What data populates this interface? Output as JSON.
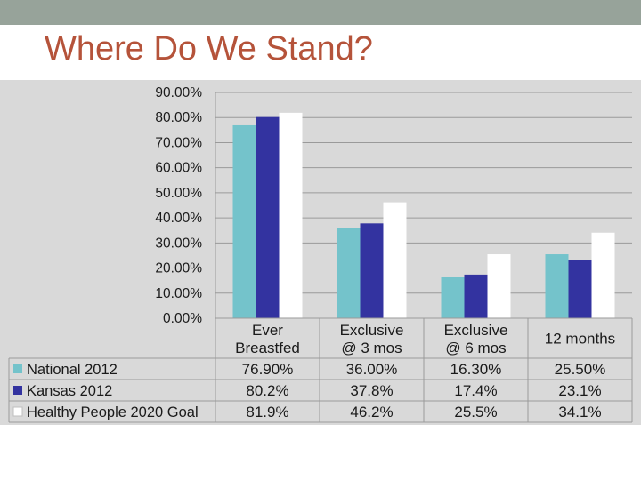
{
  "slide": {
    "title": "Where Do We Stand?"
  },
  "colors": {
    "top_bar": "#97a39a",
    "title": "#b5533a",
    "panel": "#d9d9d9"
  },
  "chart_data": {
    "type": "bar",
    "categories": [
      [
        "Ever",
        "Breastfed"
      ],
      [
        "Exclusive",
        "@ 3 mos"
      ],
      [
        "Exclusive",
        "@ 6 mos"
      ],
      [
        "12 months"
      ]
    ],
    "ylim": [
      0,
      90
    ],
    "y_ticks": [
      "0.00%",
      "10.00%",
      "20.00%",
      "30.00%",
      "40.00%",
      "50.00%",
      "60.00%",
      "70.00%",
      "80.00%",
      "90.00%"
    ],
    "grid": true,
    "legend": "data-table",
    "series": [
      {
        "name": "National 2012",
        "color": "#74c3cb",
        "values": [
          76.9,
          36.0,
          16.3,
          25.5
        ],
        "labels": [
          "76.90%",
          "36.00%",
          "16.30%",
          "25.50%"
        ]
      },
      {
        "name": "Kansas 2012",
        "color": "#3333a0",
        "values": [
          80.2,
          37.8,
          17.4,
          23.1
        ],
        "labels": [
          "80.2%",
          "37.8%",
          "17.4%",
          "23.1%"
        ]
      },
      {
        "name": "Healthy People 2020 Goal",
        "color": "#ffffff",
        "values": [
          81.9,
          46.2,
          25.5,
          34.1
        ],
        "labels": [
          "81.9%",
          "46.2%",
          "25.5%",
          "34.1%"
        ]
      }
    ]
  }
}
